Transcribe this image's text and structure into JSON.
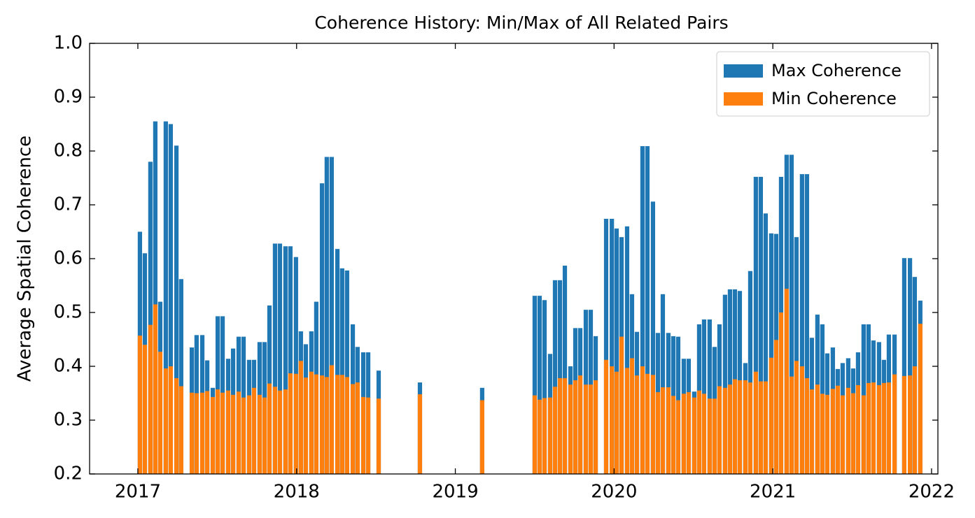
{
  "chart_data": {
    "type": "bar",
    "title": "Coherence History: Min/Max of All Related Pairs",
    "y_label": "Average Spatial Coherence",
    "legend": "upper right",
    "xlim": [
      2016.696,
      2022.04
    ],
    "xticks": [
      2017,
      2018,
      2019,
      2020,
      2021,
      2022
    ],
    "ylim": [
      0.2,
      1.0
    ],
    "yticks": [
      0.2,
      0.3,
      0.4,
      0.5,
      0.6,
      0.7,
      0.8,
      0.9,
      {
        "value": 1.0,
        "label": "1.0"
      }
    ],
    "x": [
      2017.013,
      2017.044,
      2017.079,
      2017.11,
      2017.141,
      2017.176,
      2017.207,
      2017.243,
      2017.273,
      2017.34,
      2017.37,
      2017.406,
      2017.437,
      2017.472,
      2017.503,
      2017.534,
      2017.569,
      2017.6,
      2017.635,
      2017.666,
      2017.701,
      2017.732,
      2017.767,
      2017.798,
      2017.829,
      2017.864,
      2017.895,
      2017.93,
      2017.961,
      2017.996,
      2018.027,
      2018.058,
      2018.093,
      2018.124,
      2018.16,
      2018.19,
      2018.221,
      2018.257,
      2018.287,
      2018.318,
      2018.354,
      2018.384,
      2018.42,
      2018.451,
      2018.517,
      2018.777,
      2019.169,
      2019.5,
      2019.531,
      2019.562,
      2019.597,
      2019.628,
      2019.659,
      2019.69,
      2019.725,
      2019.756,
      2019.787,
      2019.822,
      2019.853,
      2019.884,
      2019.95,
      2019.986,
      2020.016,
      2020.047,
      2020.082,
      2020.113,
      2020.144,
      2020.179,
      2020.21,
      2020.245,
      2020.276,
      2020.307,
      2020.342,
      2020.373,
      2020.404,
      2020.439,
      2020.47,
      2020.505,
      2020.536,
      2020.567,
      2020.602,
      2020.633,
      2020.664,
      2020.699,
      2020.73,
      2020.761,
      2020.792,
      2020.827,
      2020.858,
      2020.893,
      2020.924,
      2020.955,
      2020.99,
      2021.021,
      2021.052,
      2021.087,
      2021.118,
      2021.149,
      2021.184,
      2021.215,
      2021.246,
      2021.281,
      2021.312,
      2021.343,
      2021.378,
      2021.409,
      2021.44,
      2021.475,
      2021.506,
      2021.537,
      2021.572,
      2021.603,
      2021.634,
      2021.669,
      2021.7,
      2021.731,
      2021.767,
      2021.828,
      2021.864,
      2021.894,
      2021.929
    ],
    "series": [
      {
        "name": "Max Coherence",
        "color": "#1f77b4",
        "values": [
          0.65,
          0.61,
          0.78,
          0.855,
          0.52,
          0.855,
          0.85,
          0.81,
          0.562,
          0.435,
          0.458,
          0.458,
          0.411,
          0.36,
          0.493,
          0.493,
          0.414,
          0.433,
          0.455,
          0.455,
          0.412,
          0.412,
          0.445,
          0.445,
          0.513,
          0.628,
          0.628,
          0.623,
          0.623,
          0.603,
          0.465,
          0.441,
          0.465,
          0.52,
          0.74,
          0.789,
          0.789,
          0.618,
          0.582,
          0.578,
          0.478,
          0.436,
          0.426,
          0.426,
          0.392,
          0.37,
          0.36,
          0.531,
          0.531,
          0.523,
          0.423,
          0.56,
          0.56,
          0.587,
          0.4,
          0.471,
          0.471,
          0.505,
          0.505,
          0.456,
          0.674,
          0.674,
          0.656,
          0.64,
          0.66,
          0.534,
          0.464,
          0.809,
          0.809,
          0.706,
          0.462,
          0.534,
          0.462,
          0.456,
          0.455,
          0.414,
          0.414,
          0.353,
          0.478,
          0.487,
          0.487,
          0.436,
          0.478,
          0.533,
          0.543,
          0.543,
          0.54,
          0.406,
          0.577,
          0.752,
          0.752,
          0.684,
          0.647,
          0.646,
          0.752,
          0.793,
          0.793,
          0.64,
          0.757,
          0.757,
          0.453,
          0.496,
          0.478,
          0.424,
          0.435,
          0.395,
          0.406,
          0.415,
          0.396,
          0.426,
          0.478,
          0.478,
          0.448,
          0.445,
          0.412,
          0.459,
          0.459,
          0.601,
          0.601,
          0.566,
          0.522
        ]
      },
      {
        "name": "Min Coherence",
        "color": "#ff7f0e",
        "values": [
          0.457,
          0.44,
          0.477,
          0.515,
          0.427,
          0.396,
          0.4,
          0.378,
          0.363,
          0.351,
          0.35,
          0.351,
          0.354,
          0.343,
          0.357,
          0.351,
          0.355,
          0.347,
          0.353,
          0.342,
          0.346,
          0.36,
          0.347,
          0.342,
          0.368,
          0.362,
          0.355,
          0.357,
          0.387,
          0.386,
          0.41,
          0.379,
          0.39,
          0.385,
          0.383,
          0.38,
          0.402,
          0.384,
          0.384,
          0.38,
          0.367,
          0.37,
          0.343,
          0.342,
          0.34,
          0.348,
          0.337,
          0.346,
          0.338,
          0.341,
          0.342,
          0.362,
          0.378,
          0.378,
          0.366,
          0.374,
          0.383,
          0.366,
          0.366,
          0.374,
          0.412,
          0.4,
          0.39,
          0.455,
          0.397,
          0.415,
          0.383,
          0.4,
          0.386,
          0.384,
          0.352,
          0.361,
          0.361,
          0.345,
          0.337,
          0.349,
          0.352,
          0.342,
          0.355,
          0.349,
          0.34,
          0.34,
          0.363,
          0.36,
          0.366,
          0.376,
          0.374,
          0.374,
          0.37,
          0.39,
          0.372,
          0.372,
          0.416,
          0.449,
          0.5,
          0.544,
          0.381,
          0.41,
          0.4,
          0.378,
          0.357,
          0.366,
          0.349,
          0.347,
          0.358,
          0.364,
          0.346,
          0.36,
          0.35,
          0.365,
          0.346,
          0.369,
          0.37,
          0.365,
          0.369,
          0.37,
          0.385,
          0.382,
          0.383,
          0.4,
          0.479
        ]
      }
    ]
  }
}
